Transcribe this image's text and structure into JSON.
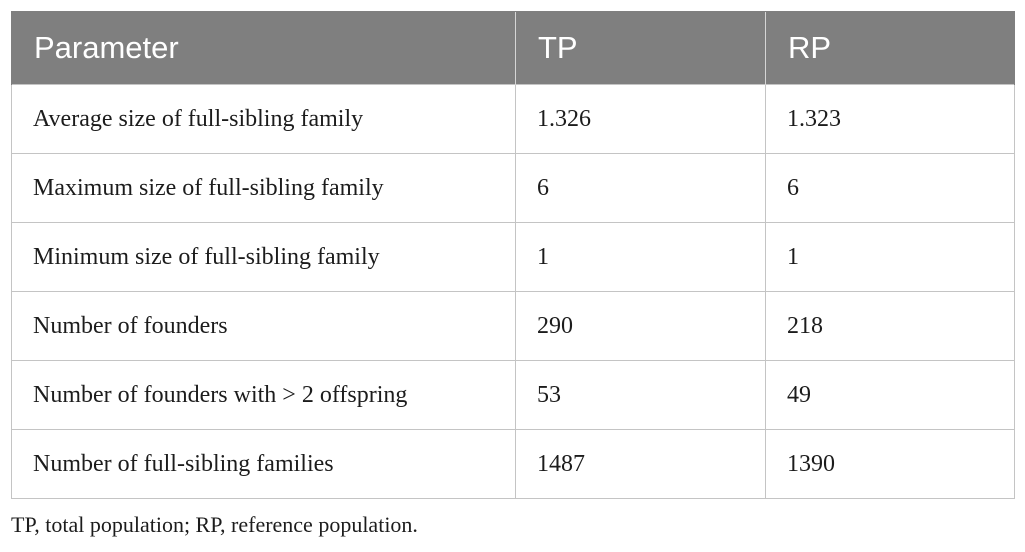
{
  "table": {
    "headers": [
      "Parameter",
      "TP",
      "RP"
    ],
    "rows": [
      [
        "Average size of full-sibling family",
        "1.326",
        "1.323"
      ],
      [
        "Maximum size of full-sibling family",
        "6",
        "6"
      ],
      [
        "Minimum size of full-sibling family",
        "1",
        "1"
      ],
      [
        "Number of founders",
        "290",
        "218"
      ],
      [
        "Number of founders with > 2 offspring",
        "53",
        "49"
      ],
      [
        "Number of full-sibling families",
        "1487",
        "1390"
      ]
    ]
  },
  "footnote": "TP, total population; RP, reference population.",
  "colors": {
    "header_background": "#7f7f7f",
    "header_text": "#ffffff",
    "border": "#c4c4c4"
  }
}
